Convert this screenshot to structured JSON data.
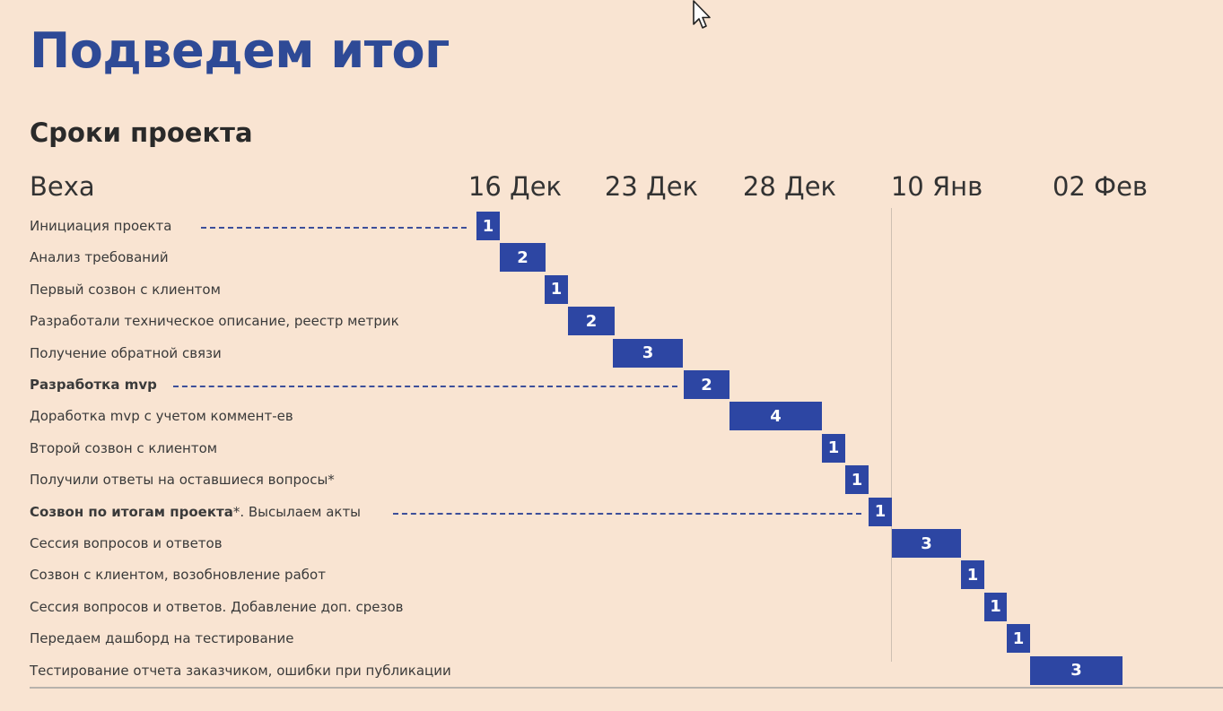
{
  "title": "Подведем итог",
  "subtitle": "Сроки проекта",
  "chart_data": {
    "type": "gantt",
    "column_header": "Веха",
    "date_labels": [
      "16 Дек",
      "23 Дек",
      "28 Дек",
      "10 Янв",
      "02 Фев"
    ],
    "tasks": [
      {
        "label": "Инициация проекта",
        "bold_part": "",
        "value": 1
      },
      {
        "label": "Анализ требований",
        "bold_part": "",
        "value": 2
      },
      {
        "label": "Первый созвон с клиентом",
        "bold_part": "",
        "value": 1
      },
      {
        "label": "Разработали техническое описание,  реестр метрик",
        "bold_part": "",
        "value": 2
      },
      {
        "label": "Получение обратной связи",
        "bold_part": "",
        "value": 3
      },
      {
        "label": "",
        "bold_part": "Разработка mvp",
        "value": 2
      },
      {
        "label": "Доработка mvp с учетом коммент-ев",
        "bold_part": "",
        "value": 4
      },
      {
        "label": "Второй созвон с клиентом",
        "bold_part": "",
        "value": 1
      },
      {
        "label": "Получили ответы на оставшиеся вопросы*",
        "bold_part": "",
        "value": 1
      },
      {
        "label": "*. Высылаем акты",
        "bold_part": "Созвон по итогам проекта",
        "value": 1
      },
      {
        "label": "Сессия вопросов и ответов",
        "bold_part": "",
        "value": 3
      },
      {
        "label": "Созвон с клиентом, возобновление работ",
        "bold_part": "",
        "value": 1
      },
      {
        "label": "Сессия вопросов и ответов. Добавление доп. срезов",
        "bold_part": "",
        "value": 1
      },
      {
        "label": "Передаем дашборд на тестирование",
        "bold_part": "",
        "value": 1
      },
      {
        "label": "Тестирование отчета заказчиком, ошибки при публикации",
        "bold_part": "",
        "value": 3
      }
    ]
  }
}
